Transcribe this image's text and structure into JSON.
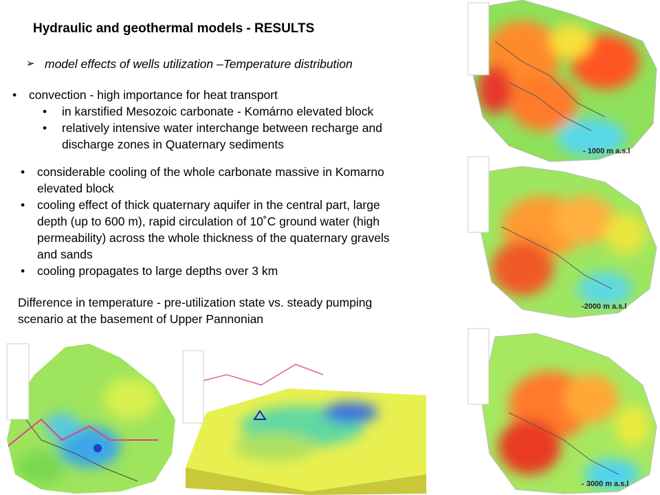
{
  "title": "Hydraulic and geothermal models - RESULTS",
  "subtitle": "model effects of wells utilization –Temperature distribution",
  "bullets": [
    {
      "lines": [
        "convection - high importance for heat transport"
      ],
      "sub": [
        {
          "lines": [
            "in karstified Mesozoic carbonate - Komárno elevated block"
          ]
        },
        {
          "lines": [
            "relatively intensive water interchange between recharge and",
            "discharge zones in Quaternary sediments"
          ]
        }
      ]
    }
  ],
  "bullets2": [
    {
      "lines": [
        "considerable cooling of the whole carbonate massive in Komarno",
        "elevated block"
      ]
    },
    {
      "lines": [
        "cooling effect of thick quaternary aquifer in the central part, large",
        "depth (up to 600 m), rapid circulation of 10˚C ground water (high",
        "permeability) across the whole thickness of the quaternary gravels",
        "and sands"
      ]
    },
    {
      "lines": [
        "cooling propagates to large depths over 3 km"
      ]
    }
  ],
  "difference": {
    "lines": [
      "Difference in temperature - pre-utilization state vs. steady pumping",
      "scenario at the basement of Upper Pannonian"
    ]
  },
  "maps": [
    {
      "label": "- 1000  m a.s.l"
    },
    {
      "label": "-2000  m a.s.l"
    },
    {
      "label": "- 3000  m a.s.l"
    }
  ]
}
